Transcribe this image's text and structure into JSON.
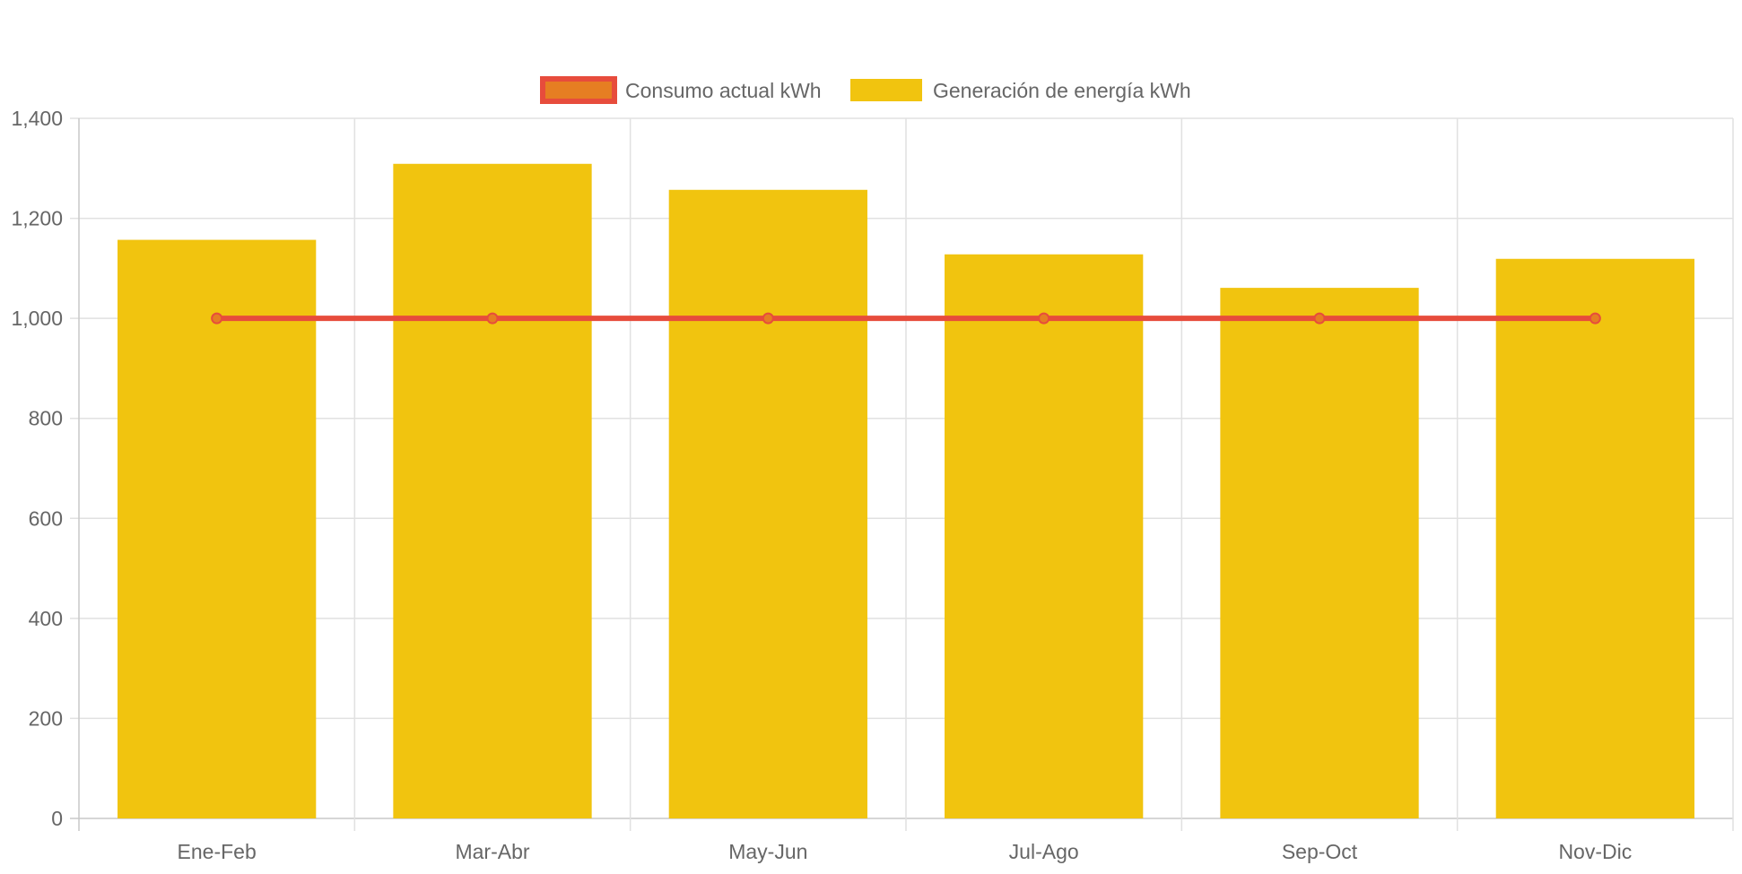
{
  "chart_data": {
    "type": "bar",
    "categories": [
      "Ene-Feb",
      "Mar-Abr",
      "May-Jun",
      "Jul-Ago",
      "Sep-Oct",
      "Nov-Dic"
    ],
    "series": [
      {
        "name": "Consumo actual kWh",
        "type": "line",
        "values": [
          1000,
          1000,
          1000,
          1000,
          1000,
          1000
        ],
        "color": "#e74c3c",
        "point_fill": "#e67e22"
      },
      {
        "name": "Generación de energía kWh",
        "type": "bar",
        "values": [
          1157,
          1309,
          1257,
          1128,
          1061,
          1119
        ],
        "color": "#f1c40f"
      }
    ],
    "y_ticks": [
      "0",
      "200",
      "400",
      "600",
      "800",
      "1,000",
      "1,200",
      "1,400"
    ],
    "ylim": [
      0,
      1400
    ],
    "title": "",
    "xlabel": "",
    "ylabel": "",
    "grid": true,
    "legend_position": "top-center"
  },
  "colors": {
    "grid": "#e1e1e1",
    "axis": "#c8c8c8",
    "tick_text": "#666666"
  }
}
